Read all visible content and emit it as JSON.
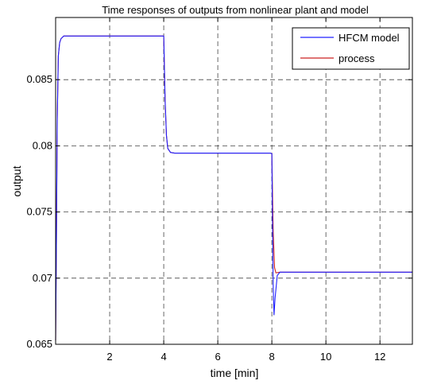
{
  "chart_data": {
    "type": "line",
    "title": "Time responses of outputs from nonlinear plant and model",
    "xlabel": "time [min]",
    "ylabel": "output",
    "xlim": [
      0,
      13.2
    ],
    "ylim": [
      0.065,
      0.0897
    ],
    "xticks": [
      2,
      4,
      6,
      8,
      10,
      12
    ],
    "xtick_labels": [
      "2",
      "4",
      "6",
      "8",
      "10",
      "12"
    ],
    "yticks": [
      0.065,
      0.07,
      0.075,
      0.08,
      0.085
    ],
    "ytick_labels": [
      "0.065",
      "0.07",
      "0.075",
      "0.08",
      "0.085"
    ],
    "grid": true,
    "grid_style": "dashed",
    "legend_position": "top-right",
    "series": [
      {
        "name": "HFCM model",
        "color": "#2020ff",
        "points": [
          [
            0.0,
            0.0653
          ],
          [
            0.03,
            0.073
          ],
          [
            0.06,
            0.082
          ],
          [
            0.1,
            0.0868
          ],
          [
            0.15,
            0.0878
          ],
          [
            0.2,
            0.0881
          ],
          [
            0.3,
            0.0883
          ],
          [
            1.0,
            0.0883
          ],
          [
            2.0,
            0.0883
          ],
          [
            3.0,
            0.0883
          ],
          [
            3.95,
            0.0883
          ],
          [
            4.0,
            0.0883
          ],
          [
            4.05,
            0.0835
          ],
          [
            4.1,
            0.0808
          ],
          [
            4.15,
            0.0798
          ],
          [
            4.25,
            0.0795
          ],
          [
            4.4,
            0.07945
          ],
          [
            6.0,
            0.07945
          ],
          [
            7.95,
            0.07945
          ],
          [
            8.0,
            0.0794
          ],
          [
            8.02,
            0.075
          ],
          [
            8.05,
            0.0695
          ],
          [
            8.08,
            0.0672
          ],
          [
            8.12,
            0.0685
          ],
          [
            8.2,
            0.0702
          ],
          [
            8.3,
            0.07045
          ],
          [
            9.0,
            0.07045
          ],
          [
            11.0,
            0.07045
          ],
          [
            13.2,
            0.07045
          ]
        ]
      },
      {
        "name": "process",
        "color": "#cc2222",
        "points": [
          [
            0.0,
            0.0653
          ],
          [
            0.03,
            0.073
          ],
          [
            0.06,
            0.082
          ],
          [
            0.1,
            0.0868
          ],
          [
            0.15,
            0.0878
          ],
          [
            0.2,
            0.0881
          ],
          [
            0.3,
            0.0883
          ],
          [
            1.0,
            0.0883
          ],
          [
            2.0,
            0.0883
          ],
          [
            3.0,
            0.0883
          ],
          [
            3.95,
            0.0883
          ],
          [
            4.0,
            0.0883
          ],
          [
            4.05,
            0.0835
          ],
          [
            4.1,
            0.0808
          ],
          [
            4.15,
            0.0798
          ],
          [
            4.25,
            0.0795
          ],
          [
            4.4,
            0.07945
          ],
          [
            6.0,
            0.07945
          ],
          [
            7.95,
            0.07945
          ],
          [
            8.0,
            0.0794
          ],
          [
            8.05,
            0.0735
          ],
          [
            8.1,
            0.0708
          ],
          [
            8.15,
            0.0704
          ],
          [
            8.3,
            0.07045
          ],
          [
            9.0,
            0.07045
          ],
          [
            11.0,
            0.07045
          ],
          [
            13.2,
            0.07045
          ]
        ]
      }
    ]
  }
}
